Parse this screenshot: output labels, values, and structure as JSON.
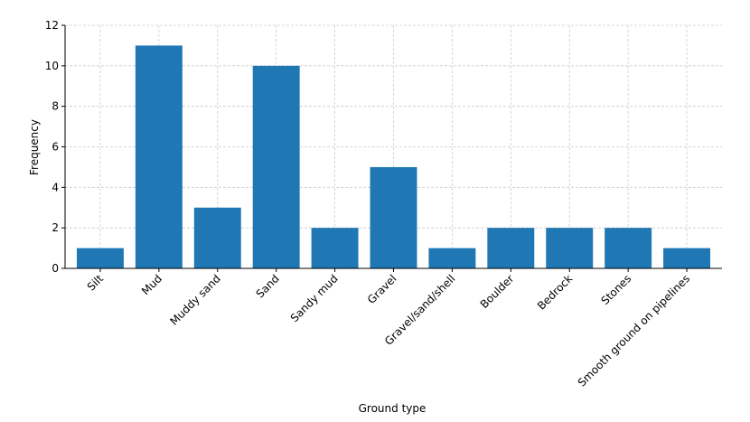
{
  "chart_data": {
    "type": "bar",
    "title": "",
    "xlabel": "Ground type",
    "ylabel": "Frequency",
    "categories": [
      "Silt",
      "Mud",
      "Muddy sand",
      "Sand",
      "Sandy mud",
      "Gravel",
      "Gravel/sand/shell",
      "Boulder",
      "Bedrock",
      "Stones",
      "Smooth ground on pipelines"
    ],
    "values": [
      1,
      11,
      3,
      10,
      2,
      5,
      1,
      2,
      2,
      2,
      1
    ],
    "ylim": [
      0,
      12
    ],
    "yticks": [
      0,
      2,
      4,
      6,
      8,
      10,
      12
    ],
    "grid": true,
    "legend": "none",
    "bar_color": "#1f77b4"
  }
}
